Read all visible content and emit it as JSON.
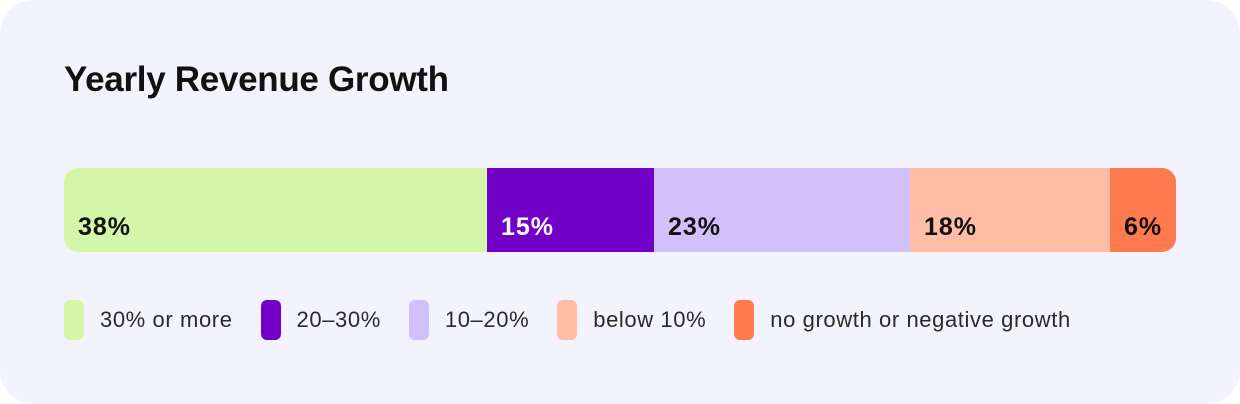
{
  "colors": {
    "background": "#f3f3fd",
    "title": "#111111"
  },
  "chart_data": {
    "type": "bar",
    "orientation": "horizontal-stacked-100",
    "title": "Yearly Revenue Growth",
    "categories": [
      "30% or more",
      "20–30%",
      "10–20%",
      "below 10%",
      "no growth or negative growth"
    ],
    "values": [
      38,
      15,
      23,
      18,
      6
    ],
    "value_labels": [
      "38%",
      "15%",
      "23%",
      "18%",
      "6%"
    ],
    "colors": [
      "#d3f6a8",
      "#7300c7",
      "#d2c0fb",
      "#ffbca6",
      "#ff7b4f"
    ],
    "label_colors": [
      "#111111",
      "#ffffff",
      "#111111",
      "#111111",
      "#111111"
    ],
    "legend": "bottom",
    "grid": false
  }
}
